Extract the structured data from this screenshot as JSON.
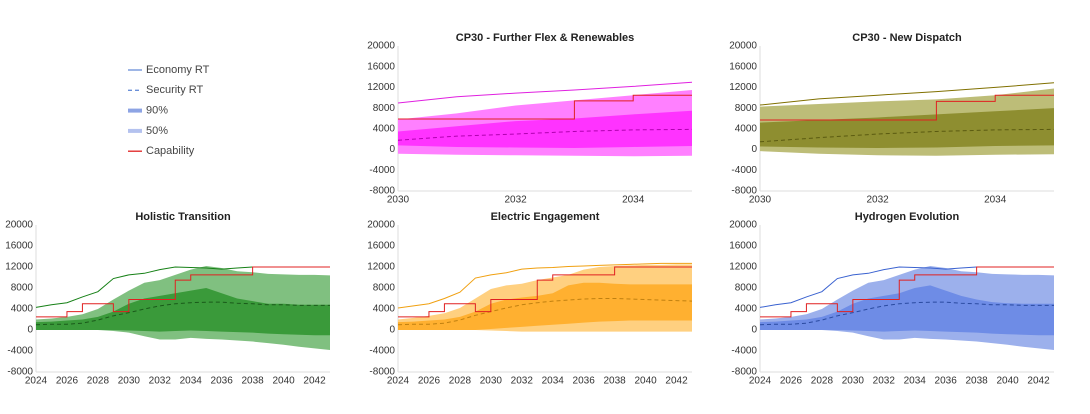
{
  "chart_data": [
    {
      "type": "line",
      "title": "CP30 - Further Flex & Renewables",
      "x": [
        2030,
        2031,
        2032,
        2033,
        2034,
        2035
      ],
      "xlim": [
        2030,
        2035
      ],
      "xticks": [
        2030,
        2032,
        2034
      ],
      "ylim": [
        -8000,
        20000
      ],
      "yticks": [
        -8000,
        -4000,
        0,
        4000,
        8000,
        12000,
        16000,
        20000
      ],
      "grid": false,
      "series": [
        {
          "name": "90%",
          "style": "band",
          "color": "#ff80ff",
          "upper": [
            5800,
            7000,
            8500,
            9500,
            10500,
            11500
          ],
          "lower": [
            -800,
            -1000,
            -1100,
            -1200,
            -1300,
            -1200
          ]
        },
        {
          "name": "50%",
          "style": "band",
          "color": "#ff33ff",
          "upper": [
            3500,
            4500,
            5500,
            6000,
            6800,
            7500
          ],
          "lower": [
            800,
            500,
            400,
            300,
            500,
            700
          ]
        },
        {
          "name": "Economy RT",
          "style": "solid",
          "color": "#e020e0",
          "values": [
            9000,
            10200,
            10900,
            11500,
            12200,
            13000
          ]
        },
        {
          "name": "Security RT",
          "style": "dashed",
          "color": "#b000b0",
          "values": [
            1800,
            2600,
            3000,
            3500,
            3800,
            3900
          ]
        },
        {
          "name": "Capability",
          "style": "step",
          "color": "#e02020",
          "values": [
            5900,
            5900,
            5900,
            9400,
            10500,
            10500
          ]
        }
      ]
    },
    {
      "type": "line",
      "title": "CP30 - New Dispatch",
      "x": [
        2030,
        2031,
        2032,
        2033,
        2034,
        2035
      ],
      "xlim": [
        2030,
        2035
      ],
      "xticks": [
        2030,
        2032,
        2034
      ],
      "ylim": [
        -8000,
        20000
      ],
      "yticks": [
        -8000,
        -4000,
        0,
        4000,
        8000,
        12000,
        16000,
        20000
      ],
      "grid": false,
      "series": [
        {
          "name": "90%",
          "style": "band",
          "color": "#bdbd78",
          "upper": [
            8300,
            8800,
            9300,
            9700,
            10500,
            11800
          ],
          "lower": [
            -300,
            -800,
            -1100,
            -1200,
            -1000,
            -900
          ]
        },
        {
          "name": "50%",
          "style": "band",
          "color": "#8e8e30",
          "upper": [
            5200,
            5700,
            6200,
            6800,
            7400,
            8000
          ],
          "lower": [
            600,
            400,
            300,
            400,
            700,
            800
          ]
        },
        {
          "name": "Economy RT",
          "style": "solid",
          "color": "#807000",
          "values": [
            8600,
            9800,
            10500,
            11200,
            12000,
            12900
          ]
        },
        {
          "name": "Security RT",
          "style": "dashed",
          "color": "#5a5a10",
          "values": [
            1500,
            2300,
            3000,
            3500,
            3800,
            3900
          ]
        },
        {
          "name": "Capability",
          "style": "step",
          "color": "#e02020",
          "values": [
            5700,
            5700,
            5700,
            9300,
            10500,
            10500
          ]
        }
      ]
    },
    {
      "type": "line",
      "title": "Holistic Transition",
      "x": [
        2024,
        2025,
        2026,
        2027,
        2028,
        2029,
        2030,
        2031,
        2032,
        2033,
        2034,
        2035,
        2036,
        2037,
        2038,
        2039,
        2040,
        2041,
        2042,
        2043
      ],
      "xlim": [
        2024,
        2043
      ],
      "xticks": [
        2024,
        2026,
        2028,
        2030,
        2032,
        2034,
        2036,
        2038,
        2040,
        2042
      ],
      "ylim": [
        -8000,
        20000
      ],
      "yticks": [
        -8000,
        -4000,
        0,
        4000,
        8000,
        12000,
        16000,
        20000
      ],
      "grid": false,
      "series": [
        {
          "name": "90%",
          "style": "band",
          "color": "#80c080",
          "upper": [
            2000,
            2200,
            2500,
            3000,
            4000,
            5800,
            7500,
            9000,
            9500,
            10500,
            11500,
            12200,
            11800,
            11200,
            11000,
            10700,
            10600,
            10500,
            10500,
            10400
          ],
          "lower": [
            0,
            0,
            0,
            0,
            0,
            -200,
            -500,
            -1200,
            -1800,
            -1800,
            -1500,
            -1700,
            -1800,
            -2000,
            -2200,
            -2500,
            -2800,
            -3200,
            -3500,
            -3800
          ]
        },
        {
          "name": "50%",
          "style": "band",
          "color": "#3a9a3a",
          "upper": [
            1500,
            1600,
            1800,
            2000,
            2500,
            3500,
            5000,
            6000,
            6500,
            7000,
            7500,
            8000,
            7000,
            6000,
            5500,
            5000,
            5000,
            4800,
            4800,
            4800
          ],
          "lower": [
            0,
            0,
            0,
            0,
            0,
            0,
            -100,
            -200,
            -300,
            -200,
            -100,
            -200,
            -300,
            -400,
            -500,
            -700,
            -800,
            -900,
            -1000,
            -1000
          ]
        },
        {
          "name": "Economy RT",
          "style": "solid",
          "color": "#168016",
          "values": [
            4300,
            4800,
            5200,
            6300,
            7300,
            9800,
            10500,
            10800,
            11500,
            12000,
            11900,
            11800,
            11600,
            11800,
            12000,
            12000,
            12000,
            12000,
            12000,
            12000
          ]
        },
        {
          "name": "Security RT",
          "style": "dashed",
          "color": "#1a5a1a",
          "values": [
            1000,
            1100,
            1100,
            1300,
            1900,
            2700,
            3300,
            4000,
            4600,
            5000,
            5200,
            5300,
            5300,
            5100,
            5000,
            4800,
            4800,
            4700,
            4700,
            4700
          ]
        },
        {
          "name": "Capability",
          "style": "step",
          "color": "#e02020",
          "values": [
            2500,
            2500,
            3500,
            5000,
            5000,
            3500,
            5800,
            5800,
            5800,
            9500,
            10500,
            10500,
            10500,
            10500,
            12000,
            12000,
            12000,
            12000,
            12000,
            12000
          ]
        }
      ]
    },
    {
      "type": "line",
      "title": "Electric Engagement",
      "x": [
        2024,
        2025,
        2026,
        2027,
        2028,
        2029,
        2030,
        2031,
        2032,
        2033,
        2034,
        2035,
        2036,
        2037,
        2038,
        2039,
        2040,
        2041,
        2042,
        2043
      ],
      "xlim": [
        2024,
        2043
      ],
      "xticks": [
        2024,
        2026,
        2028,
        2030,
        2032,
        2034,
        2036,
        2038,
        2040,
        2042
      ],
      "ylim": [
        -8000,
        20000
      ],
      "yticks": [
        -8000,
        -4000,
        0,
        4000,
        8000,
        12000,
        16000,
        20000
      ],
      "grid": false,
      "series": [
        {
          "name": "90%",
          "style": "band",
          "color": "#ffd080",
          "upper": [
            2000,
            2300,
            2700,
            3200,
            4200,
            6000,
            7800,
            8500,
            8800,
            9500,
            10000,
            10500,
            11500,
            12000,
            12200,
            12300,
            12400,
            12400,
            12500,
            12500
          ],
          "lower": [
            0,
            0,
            0,
            0,
            0,
            0,
            -100,
            -200,
            -300,
            -300,
            -300,
            -300,
            -300,
            -300,
            -300,
            -300,
            -300,
            -300,
            -300,
            -300
          ]
        },
        {
          "name": "50%",
          "style": "band",
          "color": "#ffb030",
          "upper": [
            1500,
            1600,
            1800,
            2000,
            2500,
            3500,
            5000,
            5800,
            6200,
            6500,
            7000,
            8500,
            9000,
            9000,
            8800,
            8700,
            8700,
            8700,
            8700,
            8700
          ],
          "lower": [
            0,
            0,
            0,
            0,
            0,
            0,
            200,
            400,
            600,
            800,
            1000,
            1200,
            1400,
            1600,
            1700,
            1800,
            1800,
            1800,
            1800,
            1800
          ]
        },
        {
          "name": "Economy RT",
          "style": "solid",
          "color": "#f0a010",
          "values": [
            4200,
            4600,
            5000,
            6000,
            7200,
            9900,
            10500,
            10900,
            11600,
            11800,
            11900,
            12100,
            12200,
            12300,
            12400,
            12500,
            12600,
            12700,
            12700,
            12700
          ]
        },
        {
          "name": "Security RT",
          "style": "dashed",
          "color": "#c08010",
          "values": [
            1000,
            1100,
            1100,
            1300,
            1900,
            2800,
            3500,
            4200,
            4800,
            5200,
            5500,
            5700,
            5900,
            6000,
            6000,
            5900,
            5800,
            5700,
            5600,
            5500
          ]
        },
        {
          "name": "Capability",
          "style": "step",
          "color": "#e02020",
          "values": [
            2500,
            2500,
            3500,
            5000,
            5000,
            3500,
            5800,
            5800,
            5800,
            9500,
            10500,
            10500,
            10500,
            10500,
            12000,
            12000,
            12000,
            12000,
            12000,
            12000
          ]
        }
      ]
    },
    {
      "type": "line",
      "title": "Hydrogen Evolution",
      "x": [
        2024,
        2025,
        2026,
        2027,
        2028,
        2029,
        2030,
        2031,
        2032,
        2033,
        2034,
        2035,
        2036,
        2037,
        2038,
        2039,
        2040,
        2041,
        2042,
        2043
      ],
      "xlim": [
        2024,
        2043
      ],
      "xticks": [
        2024,
        2026,
        2028,
        2030,
        2032,
        2034,
        2036,
        2038,
        2040,
        2042
      ],
      "ylim": [
        -8000,
        20000
      ],
      "yticks": [
        -8000,
        -4000,
        0,
        4000,
        8000,
        12000,
        16000,
        20000
      ],
      "grid": false,
      "series": [
        {
          "name": "90%",
          "style": "band",
          "color": "#9cb0ec",
          "upper": [
            2000,
            2200,
            2500,
            3000,
            4000,
            5800,
            7500,
            9000,
            9500,
            10500,
            11500,
            12200,
            11800,
            11200,
            11000,
            10700,
            10600,
            10500,
            10500,
            10400
          ],
          "lower": [
            0,
            0,
            0,
            0,
            0,
            -200,
            -500,
            -1200,
            -1800,
            -1800,
            -1500,
            -1700,
            -1800,
            -2000,
            -2200,
            -2500,
            -2800,
            -3200,
            -3500,
            -3800
          ]
        },
        {
          "name": "50%",
          "style": "band",
          "color": "#6e8ce6",
          "upper": [
            1500,
            1600,
            1800,
            2000,
            2500,
            3500,
            5000,
            6000,
            6500,
            7000,
            8000,
            8500,
            7500,
            6500,
            5800,
            5300,
            5100,
            5000,
            5000,
            5000
          ],
          "lower": [
            0,
            0,
            0,
            0,
            0,
            0,
            -100,
            -200,
            -300,
            -200,
            -100,
            -200,
            -300,
            -400,
            -500,
            -700,
            -800,
            -900,
            -1000,
            -1000
          ]
        },
        {
          "name": "Economy RT",
          "style": "solid",
          "color": "#3a62d0",
          "values": [
            4300,
            4800,
            5200,
            6300,
            7300,
            9800,
            10500,
            10800,
            11500,
            12000,
            11900,
            11800,
            11600,
            11800,
            12000,
            12000,
            12000,
            12000,
            12000,
            12000
          ]
        },
        {
          "name": "Security RT",
          "style": "dashed",
          "color": "#2a4aa0",
          "values": [
            1000,
            1100,
            1100,
            1300,
            1900,
            2700,
            3300,
            4000,
            4600,
            5000,
            5200,
            5300,
            5300,
            5100,
            5000,
            4800,
            4800,
            4700,
            4700,
            4700
          ]
        },
        {
          "name": "Capability",
          "style": "step",
          "color": "#e02020",
          "values": [
            2500,
            2500,
            3500,
            5000,
            5000,
            3500,
            5800,
            5800,
            5800,
            9500,
            10500,
            10500,
            10500,
            10500,
            12000,
            12000,
            12000,
            12000,
            12000,
            12000
          ]
        }
      ]
    }
  ]
}
